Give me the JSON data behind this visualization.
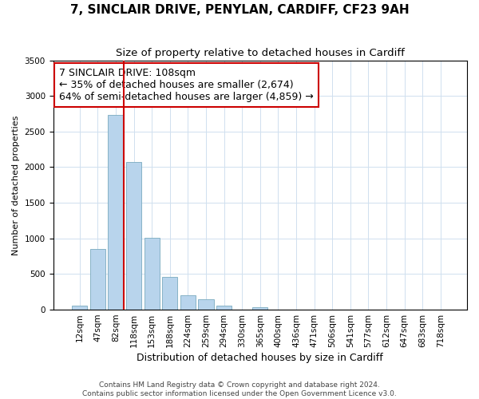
{
  "title": "7, SINCLAIR DRIVE, PENYLAN, CARDIFF, CF23 9AH",
  "subtitle": "Size of property relative to detached houses in Cardiff",
  "xlabel": "Distribution of detached houses by size in Cardiff",
  "ylabel": "Number of detached properties",
  "categories": [
    "12sqm",
    "47sqm",
    "82sqm",
    "118sqm",
    "153sqm",
    "188sqm",
    "224sqm",
    "259sqm",
    "294sqm",
    "330sqm",
    "365sqm",
    "400sqm",
    "436sqm",
    "471sqm",
    "506sqm",
    "541sqm",
    "577sqm",
    "612sqm",
    "647sqm",
    "683sqm",
    "718sqm"
  ],
  "values": [
    55,
    855,
    2730,
    2075,
    1010,
    455,
    205,
    145,
    60,
    0,
    30,
    0,
    0,
    0,
    0,
    0,
    0,
    0,
    0,
    0,
    0
  ],
  "bar_color": "#b8d4ec",
  "bar_edge_color": "#7aaabf",
  "vline_color": "#cc0000",
  "annotation_title": "7 SINCLAIR DRIVE: 108sqm",
  "annotation_line1": "← 35% of detached houses are smaller (2,674)",
  "annotation_line2": "64% of semi-detached houses are larger (4,859) →",
  "annotation_box_color": "#ffffff",
  "annotation_box_edge": "#cc0000",
  "ylim": [
    0,
    3500
  ],
  "yticks": [
    0,
    500,
    1000,
    1500,
    2000,
    2500,
    3000,
    3500
  ],
  "footer1": "Contains HM Land Registry data © Crown copyright and database right 2024.",
  "footer2": "Contains public sector information licensed under the Open Government Licence v3.0.",
  "title_fontsize": 11,
  "subtitle_fontsize": 9.5,
  "xlabel_fontsize": 9,
  "ylabel_fontsize": 8,
  "tick_fontsize": 7.5,
  "annotation_title_fontsize": 9,
  "annotation_body_fontsize": 9,
  "footer_fontsize": 6.5
}
